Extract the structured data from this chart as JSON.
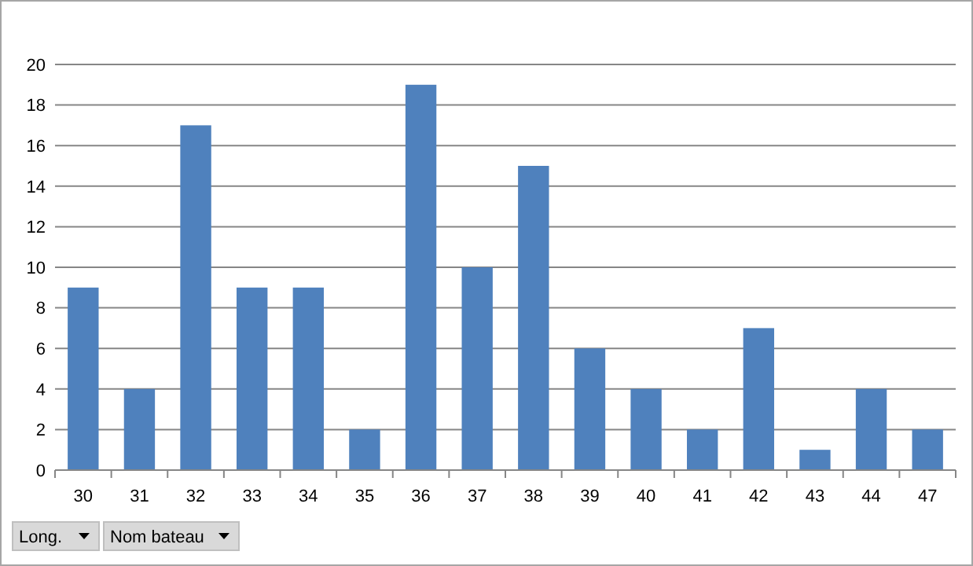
{
  "chart_data": {
    "type": "bar",
    "categories": [
      "30",
      "31",
      "32",
      "33",
      "34",
      "35",
      "36",
      "37",
      "38",
      "39",
      "40",
      "41",
      "42",
      "43",
      "44",
      "47"
    ],
    "values": [
      9,
      4,
      17,
      9,
      9,
      2,
      19,
      10,
      15,
      6,
      4,
      2,
      7,
      1,
      4,
      2
    ],
    "color": "#4f81bd",
    "ylim": [
      0,
      20
    ],
    "yticks": [
      0,
      2,
      4,
      6,
      8,
      10,
      12,
      14,
      16,
      18,
      20
    ],
    "grid": "y",
    "annotations": [
      "Long.",
      "Nom bateau"
    ]
  }
}
